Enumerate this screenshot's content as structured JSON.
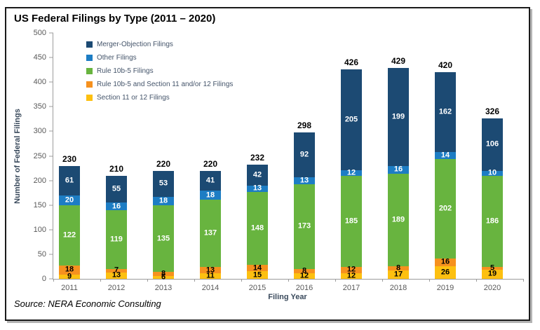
{
  "window": {
    "title": "US Federal Filings by Type (2011 – 2020)",
    "source_note": "Source: NERA Economic Consulting"
  },
  "chart_data": {
    "type": "bar",
    "stacked": true,
    "title": "US Federal Filings by Type (2011 – 2020)",
    "xlabel": "Filing Year",
    "ylabel": "Number of Federal Filings",
    "ylim": [
      0,
      500
    ],
    "yticks": [
      0,
      50,
      100,
      150,
      200,
      250,
      300,
      350,
      400,
      450,
      500
    ],
    "grid": false,
    "legend_position": "top-left-inside",
    "categories": [
      "2011",
      "2012",
      "2013",
      "2014",
      "2015",
      "2016",
      "2017",
      "2018",
      "2019",
      "2020"
    ],
    "totals": [
      230,
      210,
      220,
      220,
      232,
      298,
      426,
      429,
      420,
      326
    ],
    "series": [
      {
        "name": "Merger-Objection Filings",
        "color": "#1c4a73",
        "label_color": "#ffffff",
        "values": [
          61,
          55,
          53,
          41,
          42,
          92,
          205,
          199,
          162,
          106
        ]
      },
      {
        "name": "Other Filings",
        "color": "#1d7dc4",
        "label_color": "#ffffff",
        "values": [
          20,
          16,
          18,
          18,
          13,
          13,
          12,
          16,
          14,
          10
        ]
      },
      {
        "name": "Rule 10b-5 Filings",
        "color": "#68b43f",
        "label_color": "#ffffff",
        "values": [
          122,
          119,
          135,
          137,
          148,
          173,
          185,
          189,
          202,
          186
        ]
      },
      {
        "name": "Rule 10b-5 and Section 11 and/or 12 Filings",
        "color": "#f6911e",
        "label_color": "#000000",
        "values": [
          18,
          7,
          8,
          13,
          14,
          8,
          12,
          8,
          16,
          5
        ]
      },
      {
        "name": "Section 11 or 12 Filings",
        "color": "#fdc010",
        "label_color": "#000000",
        "values": [
          9,
          13,
          6,
          11,
          15,
          12,
          12,
          17,
          26,
          19
        ]
      }
    ]
  }
}
